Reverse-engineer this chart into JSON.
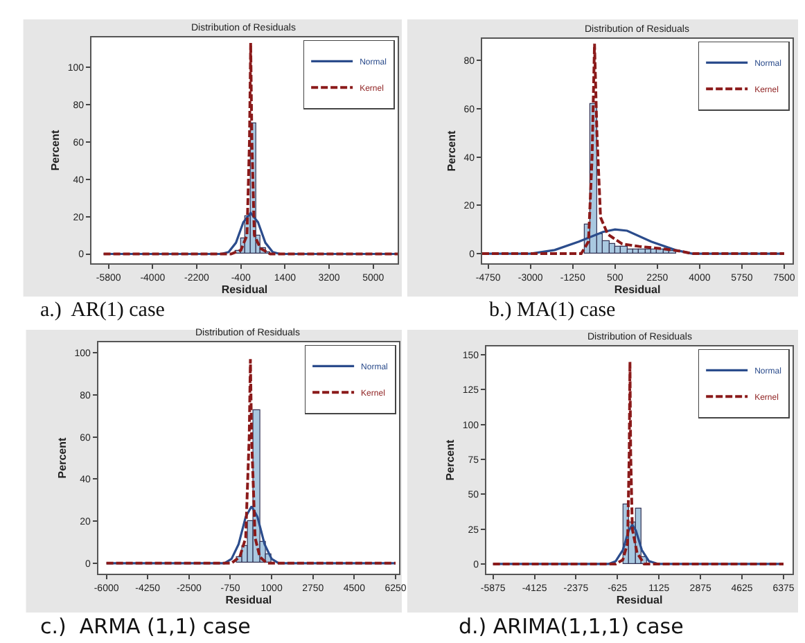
{
  "chart_data": [
    {
      "type": "histogram",
      "title": "Distribution of Residuals",
      "xlabel": "Residual",
      "ylabel": "Percent",
      "annotations": [
        "a.)  AR(1) case"
      ],
      "legend": "top right",
      "bins": [
        -800,
        -600,
        -400,
        -200,
        0,
        200,
        400,
        600,
        800
      ],
      "values": [
        null,
        2,
        8,
        20,
        70,
        10,
        3,
        1
      ],
      "color": "#a9c8e0",
      "series": [
        {
          "name": "Normal",
          "type": "line",
          "color": "#2b4c8c",
          "line_style": "solid",
          "x": [
            -6000,
            -1200,
            -900,
            -600,
            -300,
            0,
            300,
            600,
            900,
            1200,
            6000
          ],
          "values": [
            0,
            0,
            1,
            6,
            17,
            22,
            17,
            6,
            1,
            0,
            0
          ]
        },
        {
          "name": "Kernel",
          "type": "line",
          "color": "#8b1a1a",
          "line_style": "dashed",
          "x": [
            -6000,
            -800,
            -400,
            -150,
            -50,
            0,
            50,
            150,
            400,
            800,
            6000
          ],
          "values": [
            0,
            0,
            2,
            10,
            60,
            113,
            60,
            10,
            3,
            0,
            0
          ]
        }
      ],
      "xlim": [
        -6500,
        6000
      ],
      "ylim": [
        -5,
        116
      ],
      "xticks": [
        -5800,
        -4000,
        -2200,
        -400,
        1400,
        3200,
        5000
      ],
      "yticks": [
        0,
        20,
        40,
        60,
        80,
        100
      ]
    },
    {
      "type": "histogram",
      "title": "Distribution of Residuals",
      "xlabel": "Residual",
      "ylabel": "Percent",
      "annotations": [
        "b.) MA(1) case"
      ],
      "legend": "top right",
      "bins": [
        -750,
        -500,
        -250,
        0,
        250,
        500,
        750,
        1000,
        1250,
        1500,
        1750,
        2000,
        2250,
        2500,
        2750,
        3000,
        3250,
        3500
      ],
      "values": [
        12,
        62,
        8,
        5,
        4,
        3,
        3,
        2,
        2,
        2,
        2,
        2,
        2,
        2,
        1,
        null,
        null
      ],
      "color": "#a9c8e0",
      "series": [
        {
          "name": "Normal",
          "type": "line",
          "color": "#2b4c8c",
          "line_style": "solid",
          "x": [
            -5000,
            -3000,
            -2000,
            -1000,
            0,
            500,
            1000,
            2000,
            3000,
            3700,
            7500
          ],
          "values": [
            0,
            0,
            1.5,
            5,
            9,
            10,
            9.5,
            5,
            1.5,
            0,
            0
          ]
        },
        {
          "name": "Kernel",
          "type": "line",
          "color": "#8b1a1a",
          "line_style": "dashed",
          "x": [
            -5000,
            -900,
            -600,
            -450,
            -350,
            -250,
            -100,
            200,
            800,
            1500,
            2500,
            3200,
            3700,
            7500
          ],
          "values": [
            0,
            0,
            5,
            40,
            87,
            50,
            15,
            8,
            4,
            3,
            2,
            1,
            0,
            0
          ]
        }
      ],
      "xlim": [
        -5000,
        7850
      ],
      "ylim": [
        -4,
        89
      ],
      "xticks": [
        -4750,
        -3000,
        -1250,
        500,
        2250,
        4000,
        5750,
        7500
      ],
      "yticks": [
        0,
        20,
        40,
        60,
        80
      ]
    },
    {
      "type": "histogram",
      "title": "Distribution of Residuals",
      "xlabel": "Residual",
      "ylabel": "Percent",
      "annotations": [
        "c.)  ARMA (1,1) case"
      ],
      "legend": "top right",
      "bins": [
        -750,
        -500,
        -250,
        0,
        250,
        500,
        750,
        1000
      ],
      "values": [
        null,
        3,
        8,
        20,
        73,
        10,
        4
      ],
      "color": "#a9c8e0",
      "series": [
        {
          "name": "Normal",
          "type": "line",
          "color": "#2b4c8c",
          "line_style": "solid",
          "x": [
            -6000,
            -1000,
            -700,
            -400,
            -100,
            150,
            400,
            700,
            1000,
            1300,
            6250
          ],
          "values": [
            0,
            0,
            2,
            9,
            22,
            27,
            22,
            9,
            2,
            0,
            0
          ]
        },
        {
          "name": "Kernel",
          "type": "line",
          "color": "#8b1a1a",
          "line_style": "dashed",
          "x": [
            -6000,
            -700,
            -350,
            -100,
            50,
            100,
            150,
            300,
            500,
            800,
            6250
          ],
          "values": [
            0,
            0,
            3,
            12,
            60,
            97,
            60,
            12,
            3,
            0,
            0
          ]
        }
      ],
      "xlim": [
        -6350,
        6400
      ],
      "ylim": [
        -5,
        105
      ],
      "xticks": [
        -6000,
        -4250,
        -2500,
        -750,
        1000,
        2750,
        4500,
        6250
      ],
      "yticks": [
        0,
        20,
        40,
        60,
        80,
        100
      ]
    },
    {
      "type": "histogram",
      "title": "Distribution of Residuals",
      "xlabel": "Residual",
      "ylabel": "Percent",
      "annotations": [
        "d.) ARIMA(1,1,1) case"
      ],
      "legend": "top right",
      "bins": [
        -625,
        -375,
        -125,
        125,
        375,
        625
      ],
      "values": [
        null,
        43,
        30,
        40,
        5
      ],
      "color": "#a9c8e0",
      "series": [
        {
          "name": "Normal",
          "type": "line",
          "color": "#2b4c8c",
          "line_style": "solid",
          "x": [
            -5875,
            -1000,
            -700,
            -400,
            -150,
            0,
            150,
            400,
            700,
            1100,
            6375
          ],
          "values": [
            0,
            0,
            2,
            10,
            24,
            28,
            24,
            10,
            2,
            0,
            0
          ]
        },
        {
          "name": "Kernel",
          "type": "line",
          "color": "#8b1a1a",
          "line_style": "dashed",
          "x": [
            -5875,
            -700,
            -400,
            -200,
            -130,
            -100,
            -70,
            0,
            200,
            500,
            6375
          ],
          "values": [
            0,
            0,
            3,
            15,
            80,
            145,
            80,
            25,
            8,
            0,
            0
          ]
        }
      ],
      "xlim": [
        -6160,
        6760
      ],
      "ylim": [
        -7,
        156
      ],
      "xticks": [
        -5875,
        -4125,
        -2375,
        -625,
        1125,
        2875,
        4625,
        6375
      ],
      "yticks": [
        0,
        25,
        50,
        75,
        100,
        125,
        150
      ]
    }
  ]
}
